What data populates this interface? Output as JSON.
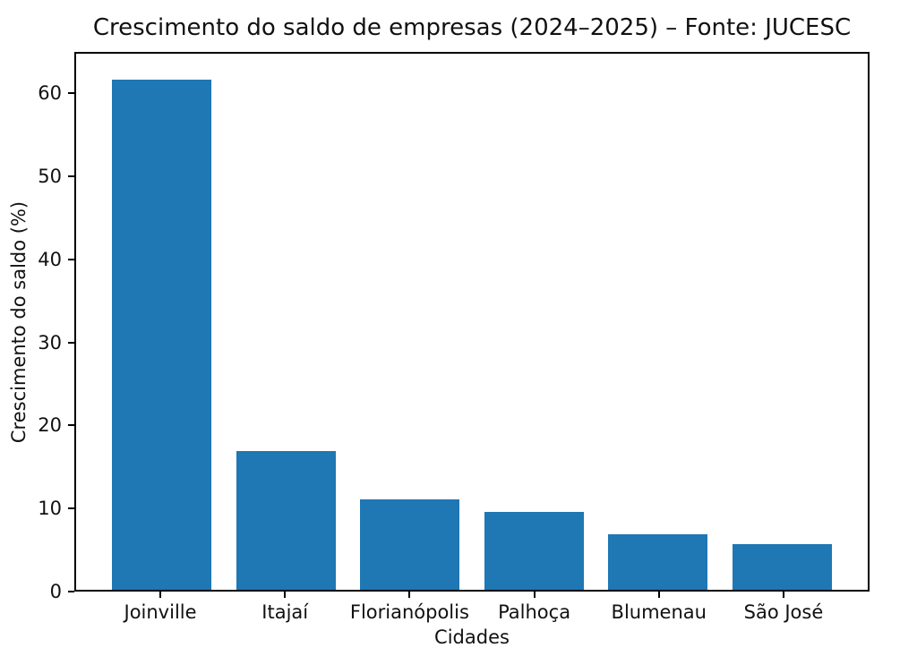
{
  "chart_data": {
    "type": "bar",
    "title": "Crescimento do saldo de empresas (2024–2025) – Fonte: JUCESC",
    "xlabel": "Cidades",
    "ylabel": "Crescimento do saldo (%)",
    "categories": [
      "Joinville",
      "Itajaí",
      "Florianópolis",
      "Palhoça",
      "Blumenau",
      "São José"
    ],
    "values": [
      61.9,
      16.8,
      11.0,
      9.4,
      6.7,
      5.5
    ],
    "yticks": [
      0,
      10,
      20,
      30,
      40,
      50,
      60
    ],
    "ylim": [
      0,
      65
    ],
    "grid": false,
    "legend_position": "none",
    "colors": {
      "bar": "#1f77b4",
      "spine": "#000000",
      "text": "#111111",
      "background": "#ffffff"
    }
  }
}
